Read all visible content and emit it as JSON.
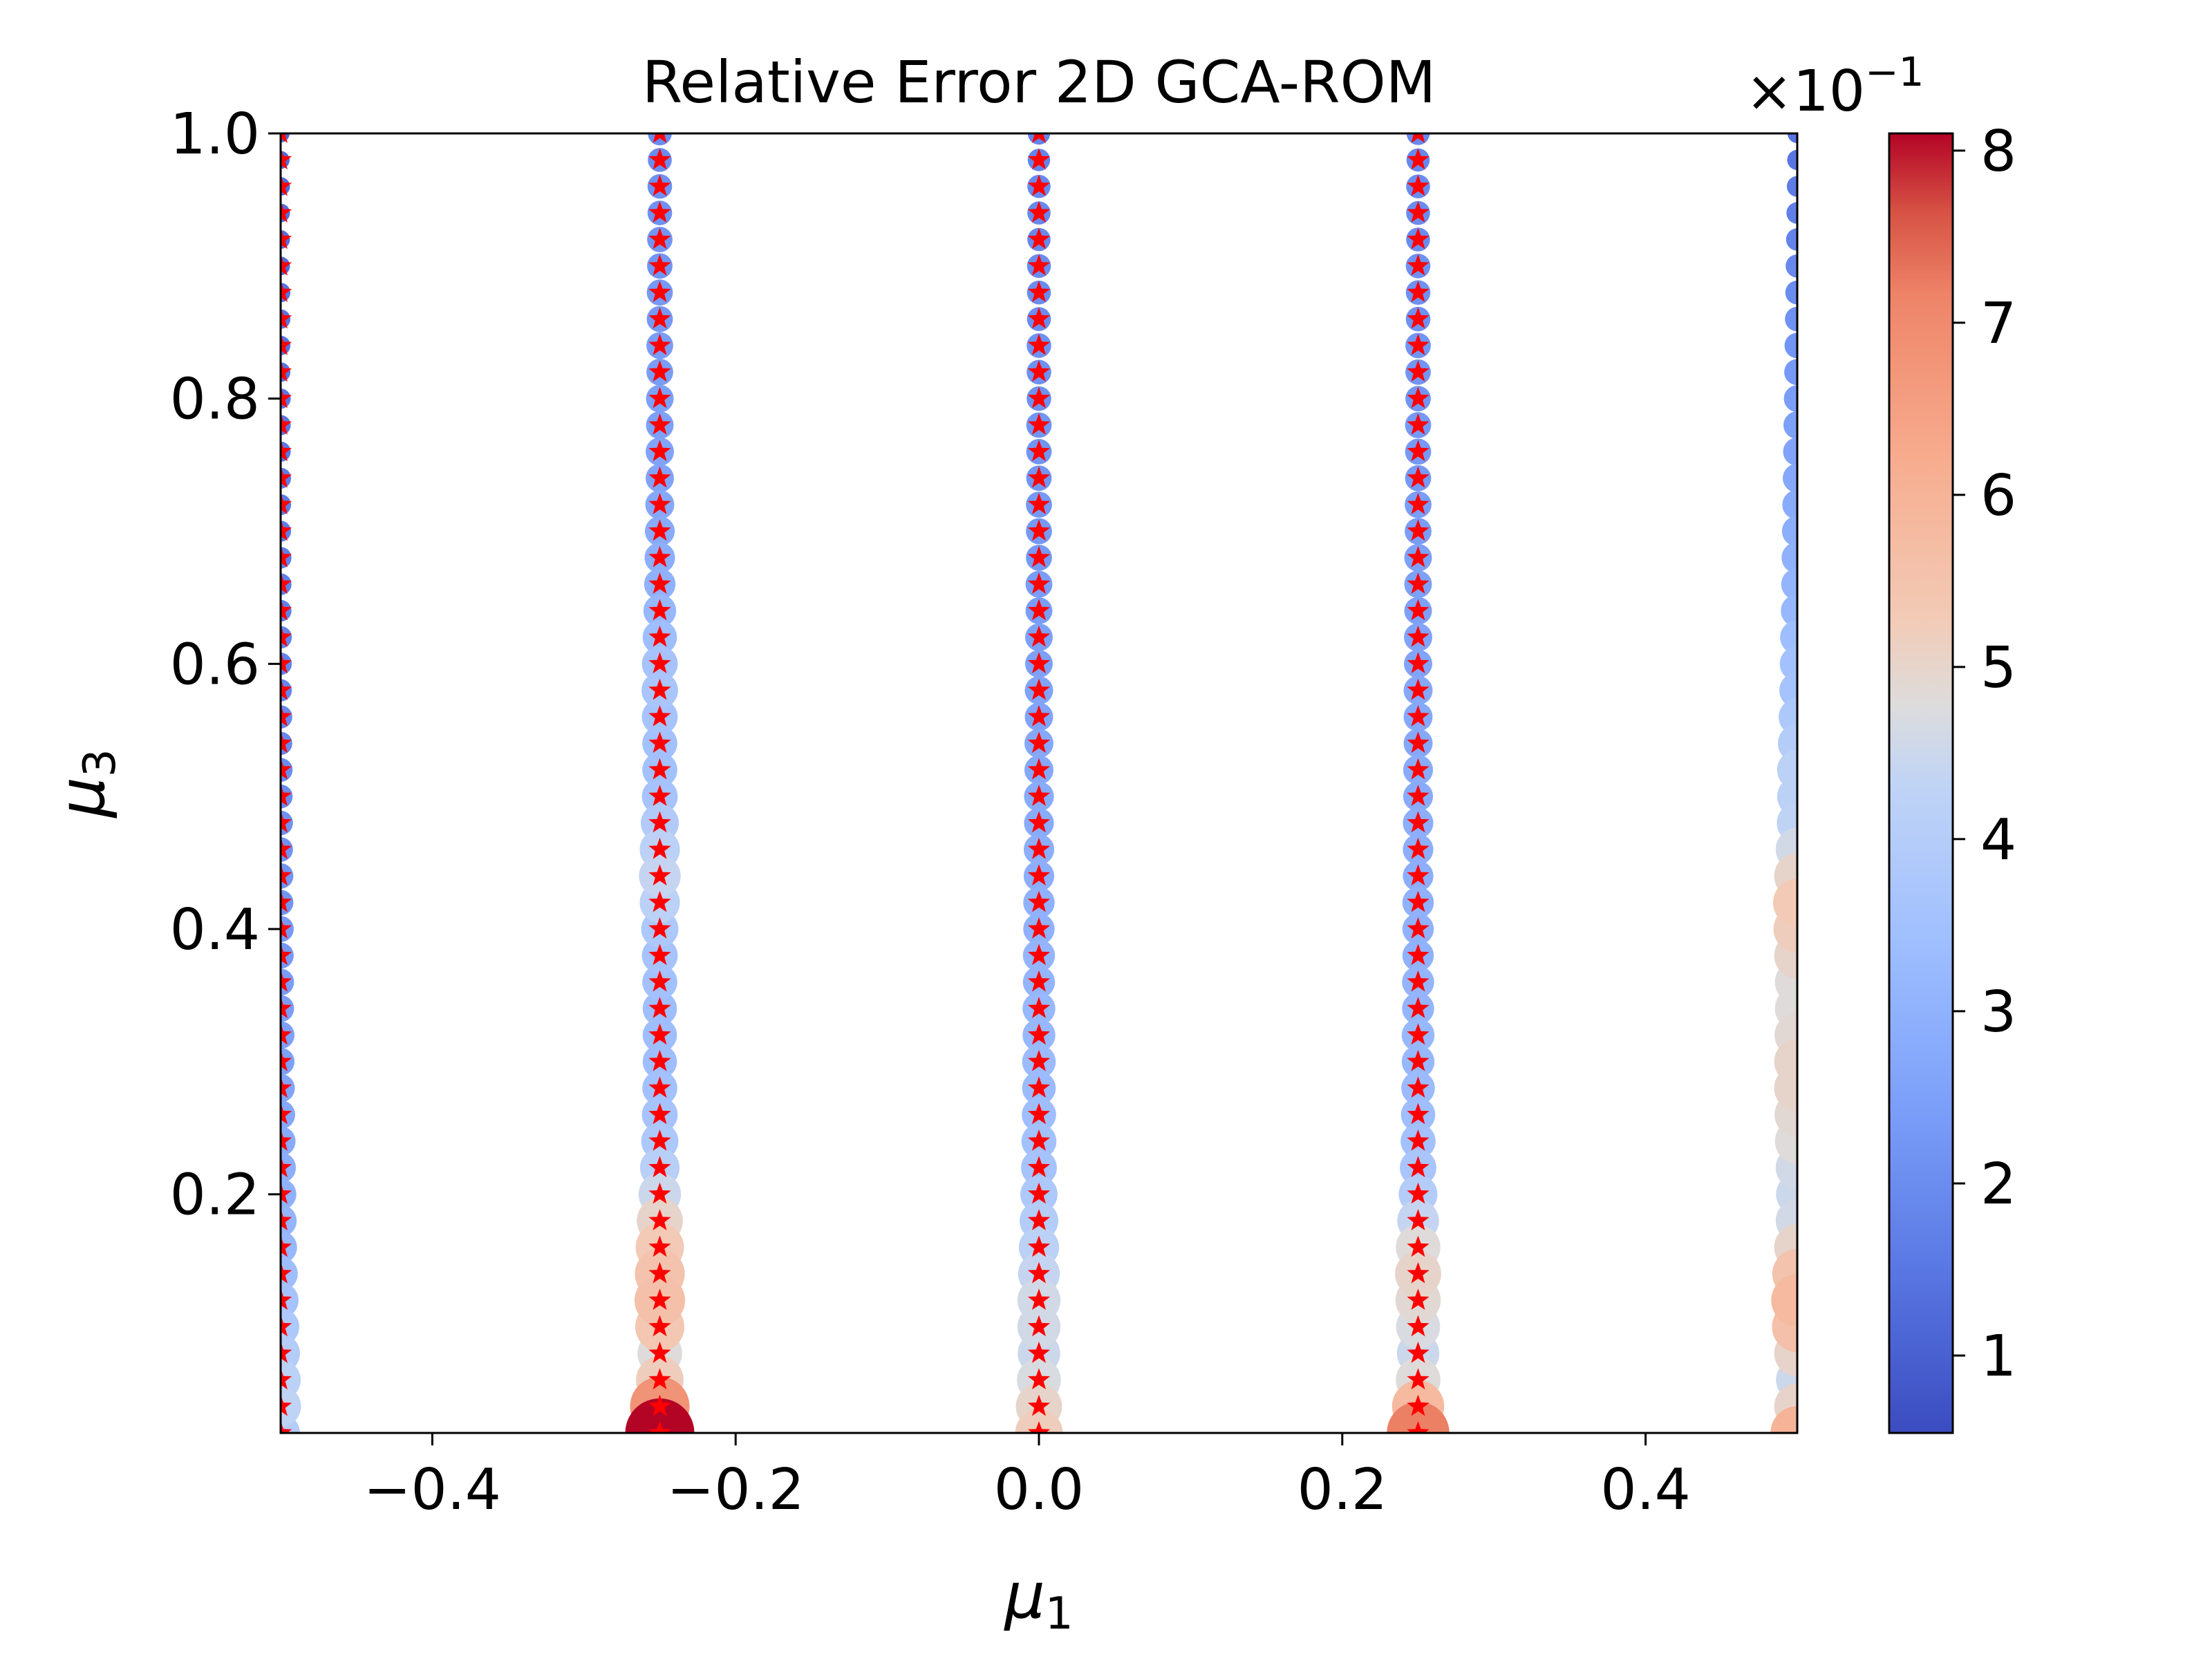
{
  "chart_data": {
    "type": "scatter",
    "title": "Relative Error 2D GCA-ROM",
    "xlabel": "μ1",
    "ylabel": "μ3",
    "xlim": [
      -0.5,
      0.5
    ],
    "ylim": [
      0.02,
      1.0
    ],
    "xticks": [
      "−0.4",
      "−0.2",
      "0.0",
      "0.2",
      "0.4"
    ],
    "xtick_values": [
      -0.4,
      -0.2,
      0.0,
      0.2,
      0.4
    ],
    "yticks": [
      "0.2",
      "0.4",
      "0.6",
      "0.8",
      "1.0"
    ],
    "ytick_values": [
      0.2,
      0.4,
      0.6,
      0.8,
      1.0
    ],
    "grid": false,
    "colormap": "coolwarm",
    "marker_size_encodes": "relative error",
    "colorbar": {
      "range": [
        0.55,
        8.1
      ],
      "ticks": [
        "1",
        "2",
        "3",
        "4",
        "5",
        "6",
        "7",
        "8"
      ],
      "tick_values": [
        1,
        2,
        3,
        4,
        5,
        6,
        7,
        8
      ],
      "offset_label_base": "×10",
      "offset_label_exp": "−1"
    },
    "training_marker": {
      "shape": "star",
      "color": "#ff0000"
    },
    "mu1_columns": [
      -0.5,
      -0.25,
      0.0,
      0.25,
      0.5
    ],
    "mu3_values": [
      0.02,
      0.04,
      0.06,
      0.08,
      0.1,
      0.12,
      0.14,
      0.16,
      0.18,
      0.2,
      0.22,
      0.24,
      0.26,
      0.28,
      0.3,
      0.32,
      0.34,
      0.36,
      0.38,
      0.4,
      0.42,
      0.44,
      0.46,
      0.48,
      0.5,
      0.52,
      0.54,
      0.56,
      0.58,
      0.6,
      0.62,
      0.64,
      0.66,
      0.68,
      0.7,
      0.72,
      0.74,
      0.76,
      0.78,
      0.8,
      0.82,
      0.84,
      0.86,
      0.88,
      0.9,
      0.92,
      0.94,
      0.96,
      0.98,
      1.0
    ],
    "series": [
      {
        "mu1": -0.5,
        "training": true,
        "error": [
          4.0,
          4.3,
          4.2,
          4.0,
          3.8,
          3.6,
          3.4,
          3.2,
          3.1,
          3.0,
          2.9,
          2.8,
          2.7,
          2.6,
          2.5,
          2.5,
          2.4,
          2.4,
          2.3,
          2.3,
          2.2,
          2.2,
          2.1,
          2.1,
          2.0,
          2.0,
          1.9,
          1.9,
          1.8,
          1.8,
          1.8,
          1.7,
          1.7,
          1.7,
          1.6,
          1.6,
          1.6,
          1.5,
          1.5,
          1.5,
          1.4,
          1.4,
          1.4,
          1.4,
          1.3,
          1.3,
          1.3,
          1.3,
          1.2,
          1.2
        ]
      },
      {
        "mu1": -0.25,
        "training": true,
        "error": [
          8.1,
          6.8,
          5.2,
          4.8,
          5.4,
          5.6,
          5.5,
          5.3,
          5.0,
          4.5,
          4.1,
          3.8,
          3.6,
          3.5,
          3.4,
          3.4,
          3.4,
          3.5,
          3.6,
          3.8,
          4.2,
          4.4,
          4.2,
          3.9,
          3.6,
          3.5,
          3.5,
          3.6,
          3.7,
          3.6,
          3.4,
          3.2,
          3.0,
          2.9,
          2.8,
          2.7,
          2.6,
          2.6,
          2.5,
          2.5,
          2.4,
          2.4,
          2.3,
          2.3,
          2.2,
          2.2,
          2.1,
          2.1,
          2.0,
          2.0
        ]
      },
      {
        "mu1": 0.0,
        "training": true,
        "error": [
          5.2,
          5.0,
          4.7,
          4.5,
          4.6,
          4.6,
          4.4,
          4.2,
          4.0,
          3.8,
          3.6,
          3.5,
          3.4,
          3.3,
          3.3,
          3.2,
          3.2,
          3.1,
          3.1,
          3.0,
          3.0,
          2.9,
          2.9,
          2.8,
          2.8,
          2.7,
          2.7,
          2.6,
          2.6,
          2.5,
          2.5,
          2.4,
          2.4,
          2.3,
          2.3,
          2.3,
          2.2,
          2.2,
          2.2,
          2.1,
          2.1,
          2.1,
          2.0,
          2.0,
          2.0,
          1.9,
          1.9,
          1.9,
          1.8,
          1.8
        ]
      },
      {
        "mu1": 0.25,
        "training": true,
        "error": [
          7.2,
          5.8,
          4.8,
          4.5,
          4.7,
          4.9,
          5.0,
          4.8,
          4.4,
          4.0,
          3.7,
          3.5,
          3.4,
          3.3,
          3.2,
          3.2,
          3.1,
          3.1,
          3.0,
          3.0,
          3.0,
          2.9,
          2.9,
          2.9,
          2.8,
          2.8,
          2.7,
          2.7,
          2.7,
          2.6,
          2.6,
          2.5,
          2.5,
          2.5,
          2.4,
          2.4,
          2.3,
          2.3,
          2.3,
          2.2,
          2.2,
          2.2,
          2.1,
          2.1,
          2.1,
          2.0,
          2.0,
          2.0,
          1.9,
          1.9
        ]
      },
      {
        "mu1": 0.5,
        "training": false,
        "error": [
          6.0,
          5.0,
          4.5,
          5.0,
          5.6,
          5.8,
          5.5,
          5.0,
          4.6,
          4.5,
          4.6,
          4.8,
          4.9,
          5.0,
          5.0,
          4.9,
          4.8,
          4.8,
          5.0,
          5.2,
          5.3,
          5.0,
          4.6,
          4.3,
          4.2,
          4.2,
          4.0,
          3.8,
          3.6,
          3.5,
          3.4,
          3.2,
          3.1,
          3.0,
          2.9,
          2.8,
          2.7,
          2.6,
          2.5,
          2.4,
          2.3,
          2.2,
          2.1,
          2.0,
          1.9,
          1.8,
          1.7,
          1.6,
          1.5,
          1.4
        ]
      }
    ]
  }
}
